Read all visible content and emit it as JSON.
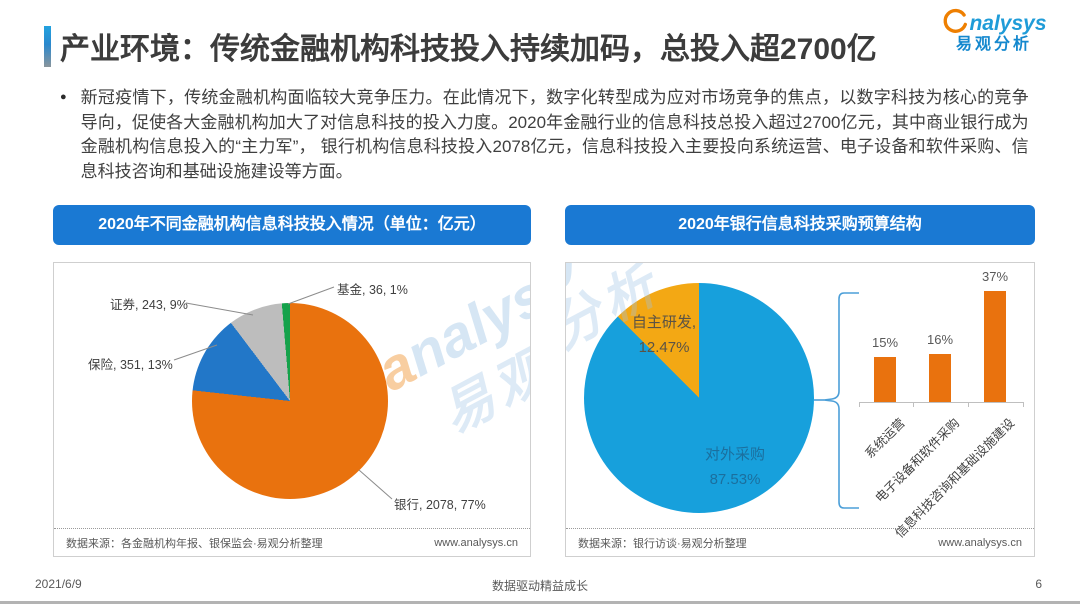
{
  "header": {
    "title": "产业环境：传统金融机构科技投入持续加码，总投入超2700亿",
    "logo_text_rest": "nalysys",
    "logo_cn": "易观分析"
  },
  "intro": {
    "bullet": "●",
    "text": "新冠疫情下，传统金融机构面临较大竞争压力。在此情况下，数字化转型成为应对市场竞争的焦点，以数字科技为核心的竞争导向，促使各大金融机构加大了对信息科技的投入力度。2020年金融行业的信息科技总投入超过2700亿元，其中商业银行成为金融机构信息投入的“主力军”， 银行机构信息科技投入2078亿元，信息科技投入主要投向系统运营、电子设备和软件采购、信息科技咨询和基础设施建设等方面。"
  },
  "left_chart": {
    "header": "2020年不同金融机构信息科技投入情况（单位：亿元）",
    "pie_labels": [
      "基金, 36, 1%",
      "证券, 243, 9%",
      "保险, 351, 13%",
      "银行, 2078, 77%"
    ],
    "source": "数据来源：各金融机构年报、银保监会·易观分析整理",
    "website": "www.analysys.cn"
  },
  "right_chart": {
    "header": "2020年银行信息科技采购预算结构",
    "self_dev_name": "自主研发,",
    "self_dev_value": "12.47%",
    "outsource_name": "对外采购",
    "outsource_value": "87.53%",
    "bar_value_labels": [
      "15%",
      "16%",
      "37%"
    ],
    "source": "数据来源：银行访谈·易观分析整理",
    "website": "www.analysys.cn"
  },
  "footer": {
    "date": "2021/6/9",
    "slogan": "数据驱动精益成长",
    "page_number": "6"
  },
  "watermark": {
    "en_a": "a",
    "en_rest": "nalysys",
    "cn": "易观分析"
  },
  "colors": {
    "header_bar_blue": "#1a79d3",
    "bank_orange": "#e9720e",
    "insurance_blue": "#2277c8",
    "securities_gray": "#bdbdbd",
    "fund_green": "#15a24b",
    "outsource_blue": "#17a0dc",
    "selfdev_yellow": "#f3a814",
    "bar_orange": "#e9720e",
    "logo_orange": "#ee7f01",
    "logo_blue": "#1f9cd8"
  },
  "chart_data": [
    {
      "type": "pie",
      "title": "2020年不同金融机构信息科技投入情况（单位：亿元）",
      "unit": "亿元",
      "labels": [
        "银行",
        "保险",
        "证券",
        "基金"
      ],
      "values": [
        2078,
        351,
        243,
        36
      ],
      "percent_labels": [
        "77%",
        "13%",
        "9%",
        "1%"
      ],
      "colors": [
        "#e9720e",
        "#2277c8",
        "#bdbdbd",
        "#15a24b"
      ],
      "start_angle_deg": 0,
      "direction": "clockwise",
      "legend": "none",
      "label_style": "callout: name, value, percent"
    },
    {
      "type": "pie",
      "title": "2020年银行信息科技采购预算结构",
      "unit": "%",
      "labels": [
        "对外采购",
        "自主研发"
      ],
      "values": [
        87.53,
        12.47
      ],
      "colors": [
        "#17a0dc",
        "#f3a814"
      ],
      "start_angle_deg": 0,
      "direction": "clockwise",
      "legend": "none",
      "label_style": "inside: name, percent"
    },
    {
      "type": "bar",
      "title": "对外采购结构",
      "categories": [
        "系统运营",
        "电子设备和软件采购",
        "信息科技咨询和基础设施建设"
      ],
      "values": [
        15,
        16,
        37
      ],
      "unit": "%",
      "bar_color": "#e9720e",
      "value_labels": [
        "15%",
        "16%",
        "37%"
      ],
      "ylim": [
        0,
        40
      ],
      "grid": "off",
      "category_label_rotation_deg": 45
    }
  ]
}
